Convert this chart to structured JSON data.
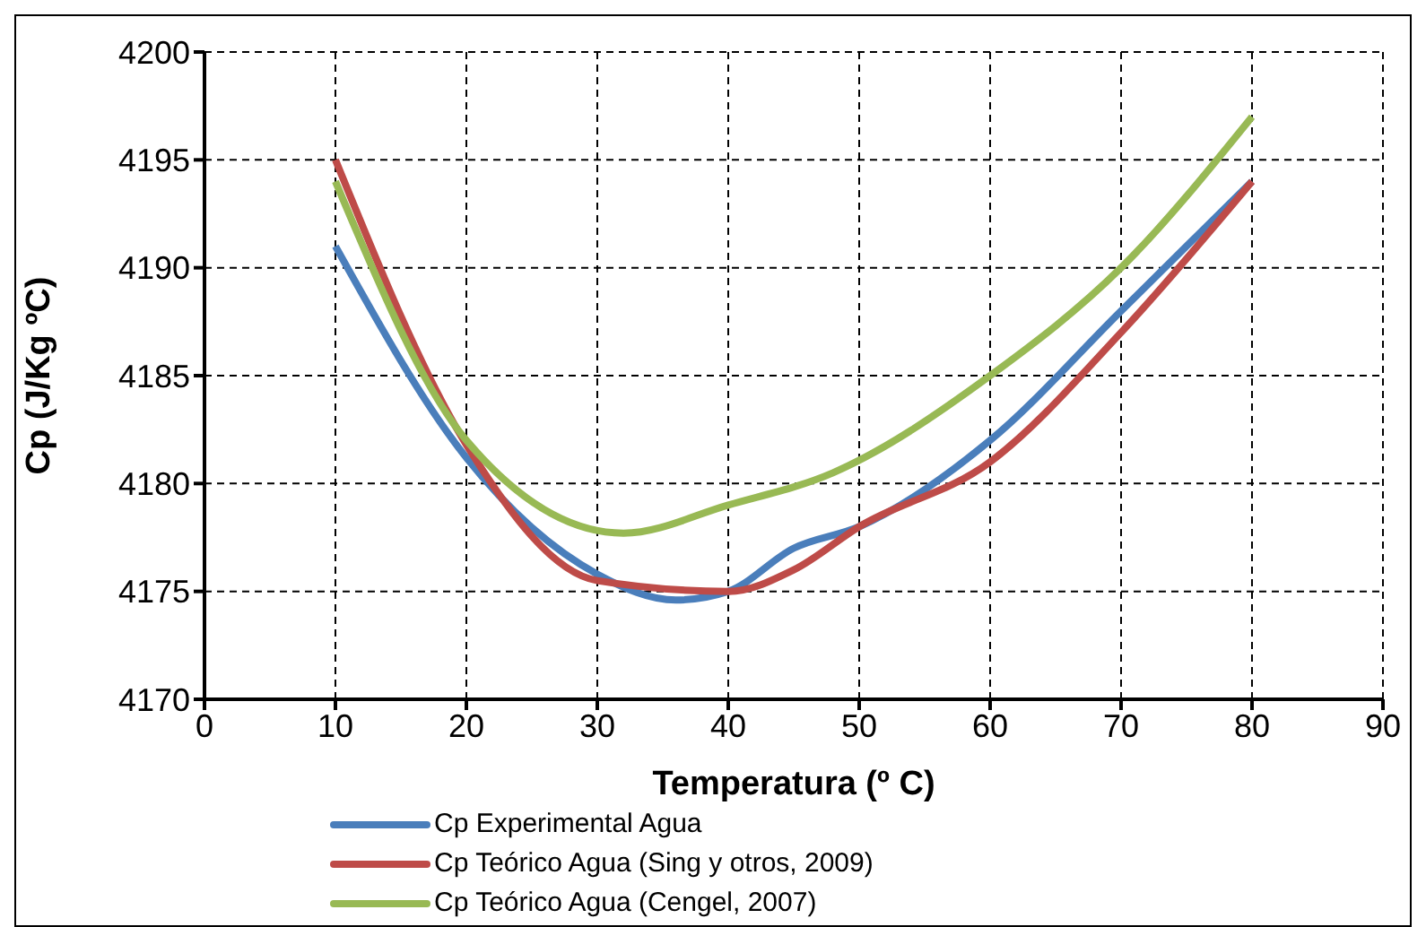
{
  "chart_data": {
    "type": "line",
    "xlabel": "Temperatura (º C)",
    "ylabel": "Cp (J/Kg ºC)",
    "xlim": [
      0,
      90
    ],
    "xticks": [
      0,
      10,
      20,
      30,
      40,
      50,
      60,
      70,
      80,
      90
    ],
    "ylim": [
      4170,
      4200
    ],
    "yticks": [
      4170,
      4175,
      4180,
      4185,
      4190,
      4195,
      4200
    ],
    "grid": true,
    "legend": "bottom",
    "marker": "none",
    "line_style": "solid",
    "series": [
      {
        "name": "Cp Experimental Agua",
        "color": "#4a7ebb",
        "x": [
          10,
          20,
          30,
          36,
          40,
          45,
          50,
          60,
          70,
          80
        ],
        "values": [
          4191,
          4181.2,
          4175.8,
          4174.6,
          4175,
          4177,
          4178,
          4182,
          4188,
          4194
        ]
      },
      {
        "name": "Cp Teórico Agua (Sing y otros, 2009)",
        "color": "#be4b48",
        "x": [
          10,
          20,
          30,
          40,
          45,
          50,
          60,
          70,
          80
        ],
        "values": [
          4195,
          4181.8,
          4175.5,
          4175,
          4176,
          4178,
          4181,
          4187,
          4194
        ]
      },
      {
        "name": "Cp Teórico Agua (Cengel, 2007)",
        "color": "#98b954",
        "x": [
          10,
          20,
          32,
          40,
          48,
          60,
          70,
          80
        ],
        "values": [
          4194,
          4182,
          4177.7,
          4179,
          4180.5,
          4185,
          4190,
          4197
        ]
      }
    ]
  }
}
